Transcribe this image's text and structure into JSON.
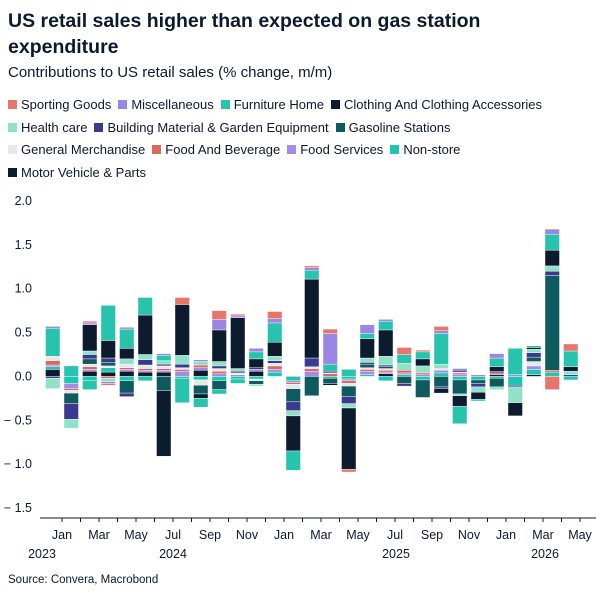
{
  "title": "US retail sales higher than expected on gas station expenditure",
  "subtitle": "Contributions to US retail sales (% change, m/m)",
  "source": "Source: Convera, Macrobond",
  "chart_data": {
    "type": "bar",
    "stacked": true,
    "ylim": [
      -1.5,
      2.0
    ],
    "yticks": [
      2.0,
      1.5,
      1.0,
      0.5,
      0.0,
      -0.5,
      -1.0,
      -1.5
    ],
    "ytick_labels": [
      "2.0",
      "1.5",
      "1.0",
      "0.5",
      "0.0",
      "− 0.5",
      "− 1.0",
      "− 1.5"
    ],
    "x_month_labels": [
      {
        "month": "2023-01",
        "label": "Jan"
      },
      {
        "month": "2023-03",
        "label": "Mar"
      },
      {
        "month": "2023-05",
        "label": "May"
      },
      {
        "month": "2023-07",
        "label": "Jul"
      },
      {
        "month": "2023-09",
        "label": "Sep"
      },
      {
        "month": "2023-11",
        "label": "Nov"
      },
      {
        "month": "2024-01",
        "label": "Jan"
      },
      {
        "month": "2024-03",
        "label": "Mar"
      },
      {
        "month": "2024-05",
        "label": "May"
      },
      {
        "month": "2024-07",
        "label": "Jul"
      },
      {
        "month": "2024-09",
        "label": "Sep"
      },
      {
        "month": "2024-11",
        "label": "Nov"
      },
      {
        "month": "2025-01",
        "label": "Jan"
      },
      {
        "month": "2025-03",
        "label": "Mar"
      },
      {
        "month": "2025-05",
        "label": "May"
      }
    ],
    "x_year_labels": [
      {
        "month": "2023-01",
        "label": "2023"
      },
      {
        "month": "2024-01",
        "label": "2024"
      },
      {
        "month": "2025-01",
        "label": "2025"
      },
      {
        "month": "2026-01",
        "label": "2026"
      }
    ],
    "x_axis_months": [
      "2023-01",
      "2023-02",
      "2023-03",
      "2023-04",
      "2023-05",
      "2023-06",
      "2023-07",
      "2023-08",
      "2023-09",
      "2023-10",
      "2023-11",
      "2023-12",
      "2024-01",
      "2024-02",
      "2024-03",
      "2024-04",
      "2024-05",
      "2024-06",
      "2024-07",
      "2024-08",
      "2024-09",
      "2024-10",
      "2024-11",
      "2024-12",
      "2025-01",
      "2025-02",
      "2025-03",
      "2025-04",
      "2025-05"
    ],
    "categories": [
      "2022-12",
      "2023-01",
      "2023-02",
      "2023-03",
      "2023-04",
      "2023-05",
      "2023-06",
      "2023-07",
      "2023-08",
      "2023-09",
      "2023-10",
      "2023-11",
      "2023-12",
      "2024-01",
      "2024-02",
      "2024-03",
      "2024-04",
      "2024-05",
      "2024-06",
      "2024-07",
      "2024-08",
      "2024-09",
      "2024-10",
      "2024-11",
      "2024-12",
      "2025-01",
      "2025-02",
      "2025-03",
      "2025-04"
    ],
    "series": [
      {
        "name": "Sporting Goods",
        "color": "#e8746a",
        "values": [
          0.0,
          0.0,
          0.02,
          -0.02,
          0.0,
          0.0,
          0.0,
          0.08,
          0.0,
          0.1,
          0.02,
          0.0,
          0.08,
          0.0,
          0.02,
          0.05,
          -0.03,
          0.0,
          0.0,
          0.08,
          0.02,
          0.05,
          0.0,
          0.0,
          0.0,
          0.0,
          0.0,
          -0.15,
          0.08
        ]
      },
      {
        "name": "Miscellaneous",
        "color": "#9b86e6",
        "values": [
          0.02,
          0.0,
          0.02,
          -0.02,
          0.02,
          0.0,
          0.02,
          0.0,
          0.02,
          0.12,
          0.02,
          0.04,
          0.05,
          0.0,
          0.03,
          0.35,
          0.0,
          0.1,
          0.02,
          0.0,
          0.0,
          0.03,
          0.02,
          0.0,
          0.05,
          0.0,
          0.0,
          0.06,
          0.0
        ]
      },
      {
        "name": "Furniture Home",
        "color": "#28c3ad",
        "values": [
          0.32,
          0.12,
          -0.1,
          0.4,
          0.22,
          0.2,
          0.06,
          -0.28,
          -0.1,
          -0.05,
          -0.05,
          0.08,
          0.22,
          -0.22,
          0.1,
          0.08,
          0.08,
          0.06,
          0.1,
          0.1,
          0.08,
          0.35,
          -0.2,
          -0.02,
          0.1,
          0.3,
          0.02,
          0.18,
          0.18
        ]
      },
      {
        "name": "Clothing And Clothing Accessories",
        "color": "#0c1b2e",
        "values": [
          0.0,
          0.0,
          0.3,
          0.2,
          0.12,
          0.45,
          -0.75,
          0.58,
          -0.05,
          0.36,
          0.58,
          0.1,
          0.16,
          -0.4,
          0.9,
          -0.02,
          -0.7,
          0.22,
          0.3,
          0.0,
          0.08,
          -0.05,
          -0.12,
          -0.08,
          0.05,
          -0.15,
          0.02,
          0.18,
          0.05
        ]
      },
      {
        "name": "Health care",
        "color": "#8fe2c8",
        "values": [
          -0.12,
          -0.1,
          0.04,
          -0.04,
          0.06,
          0.06,
          0.04,
          0.1,
          0.04,
          0.05,
          0.03,
          -0.02,
          0.05,
          -0.06,
          0.0,
          0.0,
          -0.05,
          0.05,
          0.1,
          0.08,
          0.08,
          0.05,
          -0.02,
          -0.06,
          -0.03,
          -0.18,
          0.04,
          0.06,
          0.04
        ]
      },
      {
        "name": "Building Material & Garden Equipment",
        "color": "#3a3890",
        "values": [
          -0.02,
          -0.18,
          0.05,
          0.05,
          -0.04,
          0.06,
          0.02,
          0.04,
          0.0,
          0.03,
          0.02,
          0.02,
          0.03,
          -0.1,
          0.1,
          0.02,
          -0.08,
          0.02,
          0.02,
          -0.03,
          0.0,
          -0.02,
          0.02,
          -0.04,
          0.02,
          -0.02,
          0.05,
          0.05,
          0.02
        ]
      },
      {
        "name": "Gasoline Stations",
        "color": "#0e5a5e",
        "values": [
          0.0,
          -0.12,
          0.06,
          0.04,
          -0.14,
          0.0,
          -0.16,
          0.0,
          -0.1,
          -0.1,
          0.0,
          -0.04,
          0.0,
          -0.15,
          -0.22,
          -0.06,
          -0.12,
          0.04,
          0.02,
          -0.08,
          -0.2,
          -0.12,
          -0.16,
          -0.04,
          -0.1,
          0.0,
          0.05,
          1.08,
          0.0
        ]
      },
      {
        "name": "General Merchandise",
        "color": "#e8e8e8",
        "values": [
          0.05,
          -0.03,
          0.03,
          0.02,
          0.04,
          0.04,
          0.03,
          0.02,
          -0.06,
          0.03,
          0.02,
          -0.02,
          0.03,
          -0.05,
          0.02,
          0.01,
          -0.03,
          0.02,
          0.02,
          0.0,
          0.0,
          0.02,
          0.01,
          0.0,
          0.0,
          0.0,
          0.05,
          0.0,
          0.0
        ]
      },
      {
        "name": "Food And Beverage",
        "color": "#d96a5e",
        "values": [
          0.05,
          -0.02,
          0.03,
          -0.02,
          0.02,
          0.02,
          0.02,
          0.02,
          0.03,
          0.03,
          0.0,
          0.0,
          0.04,
          -0.02,
          0.03,
          0.03,
          -0.03,
          0.02,
          0.02,
          0.03,
          0.02,
          0.0,
          0.02,
          0.0,
          0.02,
          0.0,
          0.0,
          0.02,
          0.0
        ]
      },
      {
        "name": "Food Services",
        "color": "#a58be8",
        "values": [
          0.02,
          -0.06,
          0.02,
          0.0,
          0.02,
          0.02,
          0.02,
          0.06,
          0.03,
          0.03,
          0.02,
          0.02,
          0.03,
          -0.02,
          0.06,
          0.0,
          -0.02,
          0.04,
          0.02,
          0.02,
          0.02,
          0.03,
          0.02,
          0.02,
          0.0,
          0.02,
          0.04,
          0.0,
          0.0
        ]
      },
      {
        "name": "Non-store",
        "color": "#1cc6b0",
        "values": [
          0.03,
          -0.08,
          -0.05,
          0.05,
          -0.05,
          -0.05,
          0.0,
          -0.02,
          -0.04,
          -0.05,
          -0.03,
          -0.03,
          0.05,
          -0.05,
          0.0,
          -0.02,
          -0.03,
          0.02,
          -0.05,
          0.02,
          -0.04,
          0.04,
          -0.04,
          -0.04,
          -0.02,
          -0.1,
          0.06,
          0.05,
          -0.04
        ]
      },
      {
        "name": "Motor Vehicle & Parts",
        "color": "#0c1b2e",
        "values": [
          0.08,
          0.0,
          0.06,
          0.05,
          0.06,
          0.05,
          0.05,
          0.0,
          0.07,
          0.0,
          0.0,
          0.06,
          0.0,
          0.0,
          0.0,
          0.0,
          0.0,
          0.0,
          0.03,
          0.0,
          0.0,
          0.0,
          0.0,
          0.0,
          0.02,
          0.0,
          0.02,
          0.0,
          0.0
        ]
      }
    ]
  }
}
